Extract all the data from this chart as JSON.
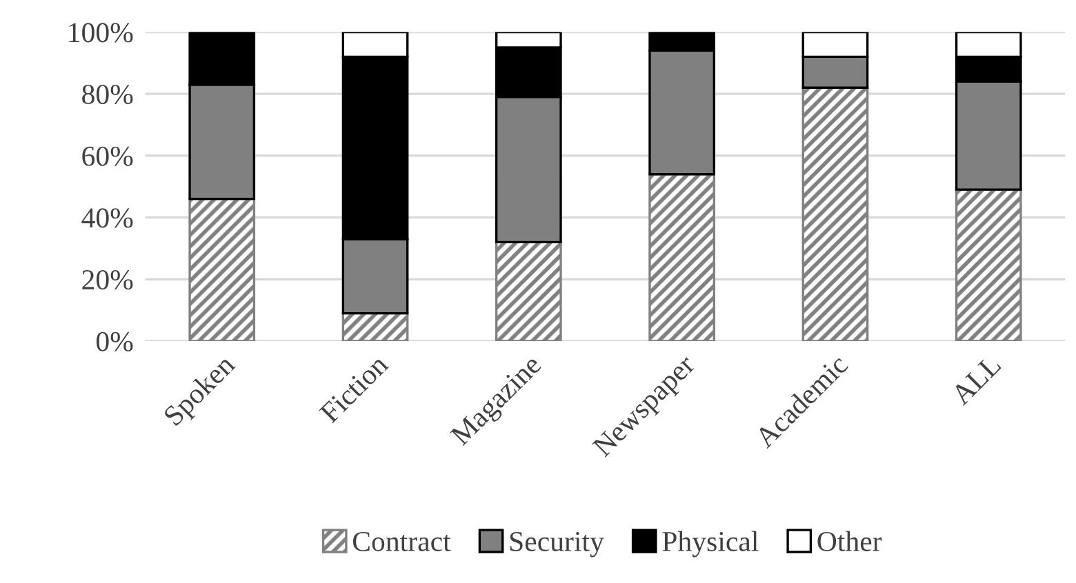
{
  "chart_data": {
    "type": "bar",
    "stacked": true,
    "categories": [
      "Spoken",
      "Fiction",
      "Magazine",
      "Newspaper",
      "Academic",
      "ALL"
    ],
    "series": [
      {
        "name": "Contract",
        "color": "#808080",
        "values": [
          46,
          9,
          32,
          54,
          82,
          49
        ]
      },
      {
        "name": "Security",
        "color": "#808080",
        "values": [
          37,
          24,
          47,
          40,
          10,
          35
        ]
      },
      {
        "name": "Physical",
        "color": "#000000",
        "values": [
          17,
          59,
          16,
          6,
          null,
          8
        ]
      },
      {
        "name": "Other",
        "color": "#ffffff",
        "values": [
          null,
          8,
          5,
          null,
          8,
          8
        ]
      }
    ],
    "ylim": [
      0,
      100
    ],
    "yticks": [
      {
        "value": 0,
        "label": "0%"
      },
      {
        "value": 20,
        "label": "20%"
      },
      {
        "value": 40,
        "label": "40%"
      },
      {
        "value": 60,
        "label": "60%"
      },
      {
        "value": 80,
        "label": "80%"
      },
      {
        "value": 100,
        "label": "100%"
      }
    ],
    "grid": "y",
    "legend": "bottom"
  }
}
